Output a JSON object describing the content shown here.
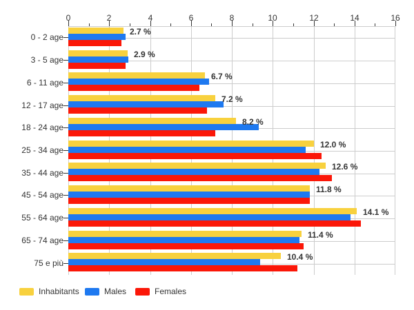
{
  "chart_data": {
    "type": "bar",
    "orientation": "horizontal",
    "title": "",
    "xlabel": "",
    "ylabel": "",
    "xlim": [
      0,
      16
    ],
    "x_ticks": [
      0,
      2,
      4,
      6,
      8,
      10,
      12,
      14,
      16
    ],
    "x_minor_ticks": [
      1,
      3,
      5,
      7,
      9,
      11,
      13,
      15
    ],
    "grid": true,
    "legend_position": "bottom-left",
    "categories": [
      "0 - 2 age",
      "3 - 5 age",
      "6 - 11 age",
      "12 - 17 age",
      "18 - 24 age",
      "25 - 34 age",
      "35 - 44 age",
      "45 - 54 age",
      "55 - 64 age",
      "65 - 74 age",
      "75 e più"
    ],
    "series": [
      {
        "name": "Inhabitants",
        "color": "#F8D13E",
        "values": [
          2.7,
          2.9,
          6.7,
          7.2,
          8.2,
          12.0,
          12.6,
          11.8,
          14.1,
          11.4,
          10.4
        ]
      },
      {
        "name": "Males",
        "color": "#1E79F0",
        "values": [
          2.8,
          2.95,
          6.9,
          7.6,
          9.3,
          11.6,
          12.3,
          11.8,
          13.8,
          11.3,
          9.4
        ]
      },
      {
        "name": "Females",
        "color": "#FB1708",
        "values": [
          2.6,
          2.8,
          6.4,
          6.8,
          7.2,
          12.4,
          12.9,
          11.8,
          14.3,
          11.5,
          11.2
        ]
      }
    ],
    "value_labels": [
      "2.7 %",
      "2.9 %",
      "6.7 %",
      "7.2 %",
      "8.2 %",
      "12.0 %",
      "12.6 %",
      "11.8 %",
      "14.1 %",
      "11.4 %",
      "10.4 %"
    ],
    "value_labels_series": "Inhabitants",
    "colors": {
      "grid": "#cccccc",
      "axis_text": "#333333",
      "value_label_text": "#333333"
    }
  }
}
